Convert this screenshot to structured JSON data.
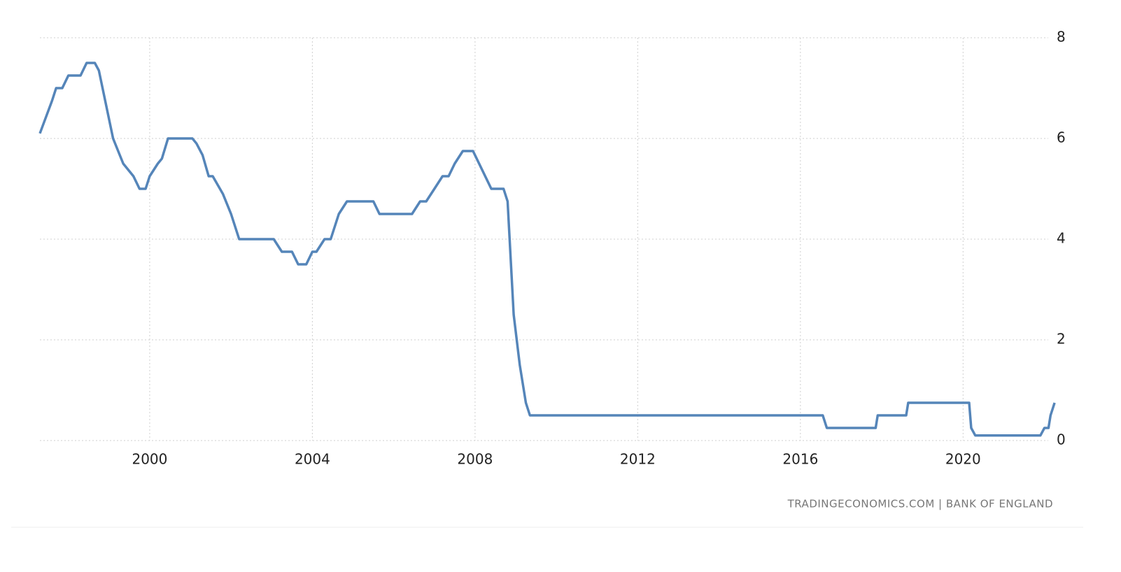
{
  "chart_data": {
    "type": "line",
    "source": "TRADINGECONOMICS.COM  |  BANK OF ENGLAND",
    "x": [
      1997.3,
      1997.6,
      1997.7,
      1997.85,
      1998.0,
      1998.3,
      1998.45,
      1998.65,
      1998.75,
      1999.1,
      1999.35,
      1999.6,
      1999.75,
      1999.9,
      2000.0,
      2000.2,
      2000.3,
      2000.45,
      2001.05,
      2001.15,
      2001.3,
      2001.45,
      2001.55,
      2001.8,
      2002.0,
      2002.2,
      2003.05,
      2003.25,
      2003.5,
      2003.65,
      2003.85,
      2004.0,
      2004.1,
      2004.3,
      2004.45,
      2004.65,
      2004.85,
      2005.5,
      2005.65,
      2006.45,
      2006.65,
      2006.8,
      2007.0,
      2007.2,
      2007.35,
      2007.5,
      2007.7,
      2007.95,
      2008.1,
      2008.25,
      2008.4,
      2008.7,
      2008.8,
      2008.95,
      2009.1,
      2009.25,
      2009.35,
      2016.55,
      2016.65,
      2017.85,
      2017.9,
      2018.6,
      2018.65,
      2020.15,
      2020.2,
      2020.3,
      2021.9,
      2022.0,
      2022.1,
      2022.15,
      2022.25
    ],
    "series": [
      {
        "color": "#5585b9",
        "values": [
          6.1,
          6.75,
          7.0,
          7.0,
          7.25,
          7.25,
          7.5,
          7.5,
          7.35,
          6.0,
          5.5,
          5.25,
          5.0,
          5.0,
          5.25,
          5.5,
          5.6,
          6.0,
          6.0,
          5.9,
          5.67,
          5.25,
          5.25,
          4.9,
          4.5,
          4.0,
          4.0,
          3.75,
          3.75,
          3.5,
          3.5,
          3.75,
          3.75,
          4.0,
          4.0,
          4.5,
          4.75,
          4.75,
          4.5,
          4.5,
          4.75,
          4.75,
          5.0,
          5.25,
          5.25,
          5.5,
          5.75,
          5.75,
          5.5,
          5.25,
          5.0,
          5.0,
          4.75,
          2.5,
          1.5,
          0.75,
          0.5,
          0.5,
          0.25,
          0.25,
          0.5,
          0.5,
          0.75,
          0.75,
          0.25,
          0.1,
          0.1,
          0.25,
          0.25,
          0.5,
          0.75
        ]
      }
    ],
    "xlim": [
      1997.3,
      2022.3
    ],
    "xticks": [
      2000,
      2004,
      2008,
      2012,
      2016,
      2020
    ],
    "ylim": [
      0,
      8
    ],
    "yticks": [
      0,
      2,
      4,
      6,
      8
    ],
    "grid": true
  }
}
